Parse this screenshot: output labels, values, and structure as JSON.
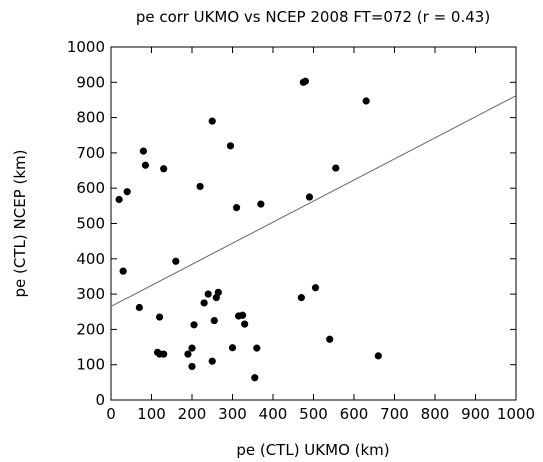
{
  "chart_data": {
    "type": "scatter",
    "title": "pe corr UKMO vs NCEP 2008 FT=072 (r = 0.43)",
    "xlabel": "pe (CTL) UKMO (km)",
    "ylabel": "pe (CTL) NCEP (km)",
    "xlim": [
      0,
      1000
    ],
    "ylim": [
      0,
      1000
    ],
    "xticks": [
      0,
      100,
      200,
      300,
      400,
      500,
      600,
      700,
      800,
      900,
      1000
    ],
    "yticks": [
      0,
      100,
      200,
      300,
      400,
      500,
      600,
      700,
      800,
      900,
      1000
    ],
    "xtick_labels": [
      "0",
      "100",
      "200",
      "300",
      "400",
      "500",
      "600",
      "700",
      "800",
      "900",
      "1000"
    ],
    "ytick_labels": [
      "0",
      "100",
      "200",
      "300",
      "400",
      "500",
      "600",
      "700",
      "800",
      "900",
      "1000"
    ],
    "grid": false,
    "fit_line": {
      "x": [
        0,
        1000
      ],
      "y": [
        265,
        862
      ]
    },
    "points": {
      "x": [
        20,
        40,
        80,
        85,
        130,
        160,
        30,
        70,
        120,
        115,
        130,
        120,
        200,
        190,
        200,
        205,
        220,
        230,
        240,
        255,
        250,
        265,
        250,
        260,
        295,
        300,
        310,
        315,
        325,
        330,
        355,
        360,
        370,
        470,
        475,
        480,
        490,
        505,
        540,
        555,
        630,
        660
      ],
      "y": [
        568,
        590,
        705,
        665,
        655,
        393,
        365,
        262,
        235,
        135,
        130,
        130,
        95,
        130,
        147,
        213,
        605,
        275,
        300,
        225,
        110,
        305,
        790,
        290,
        720,
        148,
        545,
        238,
        240,
        215,
        63,
        147,
        555,
        290,
        900,
        903,
        575,
        318,
        172,
        657,
        847,
        125
      ]
    }
  }
}
